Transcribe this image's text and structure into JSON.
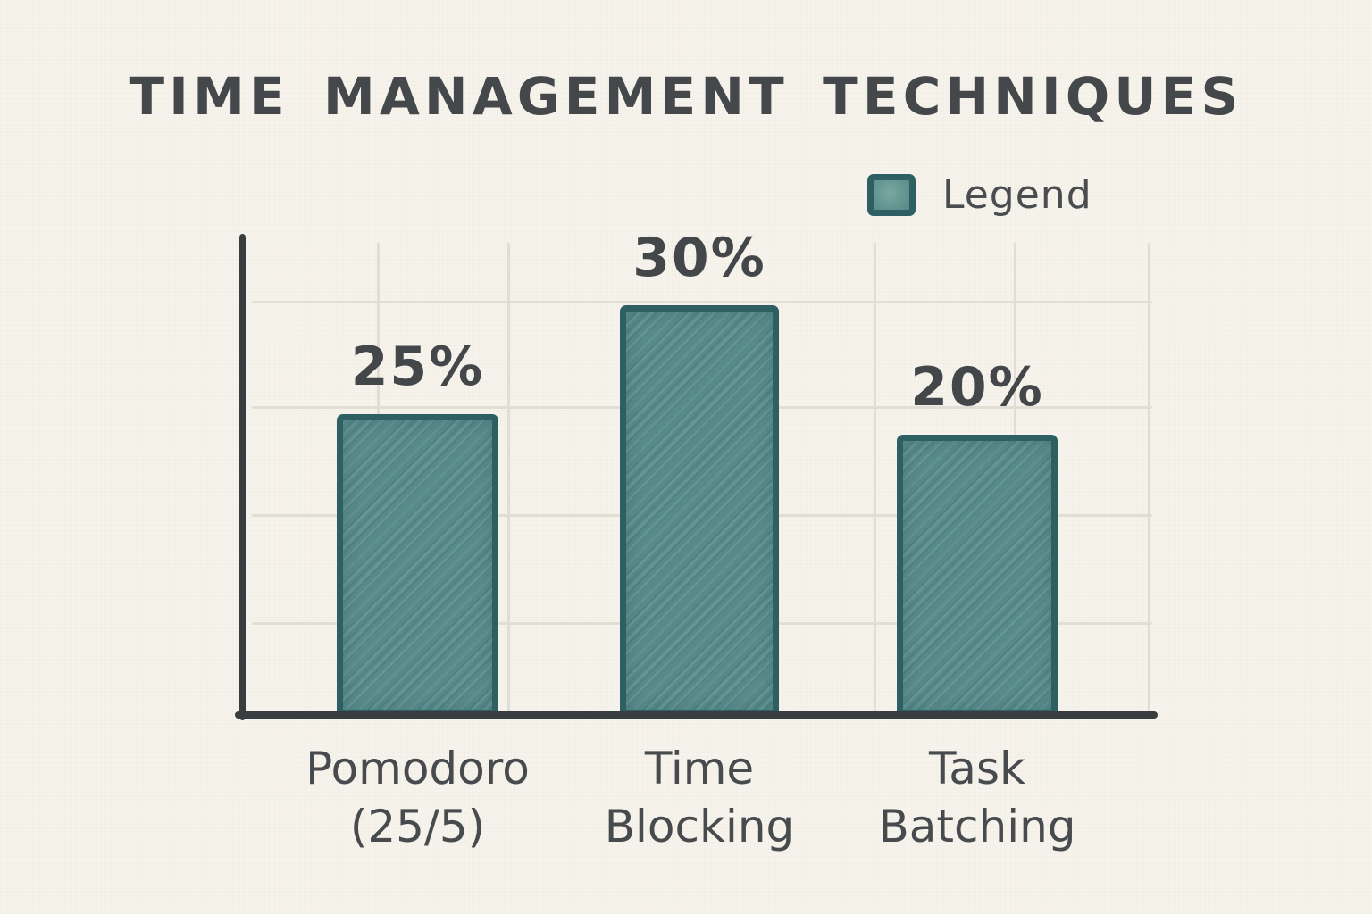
{
  "chart_data": {
    "type": "bar",
    "title": "TIME MANAGEMENT TECHNIQUES",
    "legend": {
      "label": "Legend",
      "position": "top-right"
    },
    "categories": [
      "Pomodoro (25/5)",
      "Time Blocking",
      "Task Batching"
    ],
    "category_lines": [
      [
        "Pomodoro",
        "(25/5)"
      ],
      [
        "Time",
        "Blocking"
      ],
      [
        "Task",
        "Batching"
      ]
    ],
    "values": [
      25,
      30,
      20
    ],
    "data_labels": [
      "25%",
      "30%",
      "20%"
    ],
    "unit": "%",
    "xlabel": "",
    "ylabel": "",
    "ylim": [
      0,
      35
    ],
    "grid": true,
    "style": "hand-drawn",
    "colors": {
      "background": "#f6f3ec",
      "bar_fill": "#578b8a",
      "bar_border": "#2e5f63",
      "axis": "#3a3d3f",
      "gridline": "#e0ddd5",
      "text": "#45484b"
    }
  }
}
